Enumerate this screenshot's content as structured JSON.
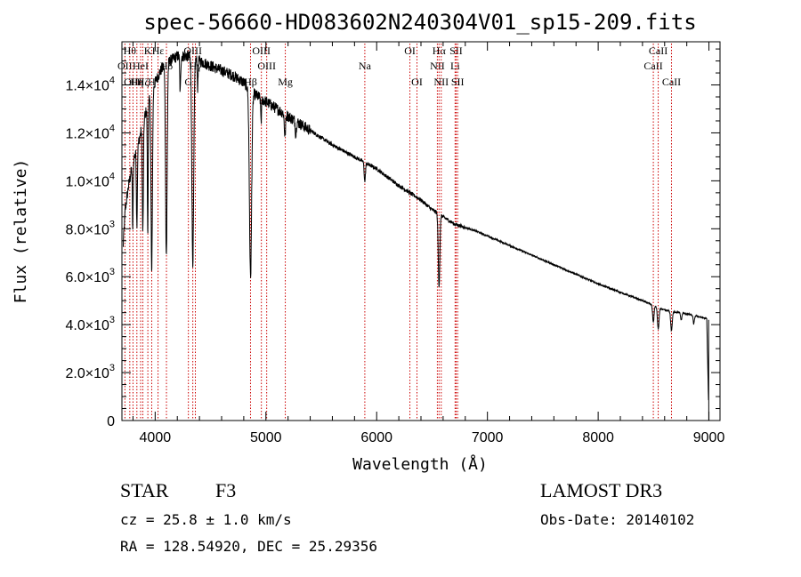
{
  "chart_data": {
    "type": "line",
    "title": "spec-56660-HD083602N240304V01_sp15-209.fits",
    "xlabel": "Wavelength (Å)",
    "ylabel": "Flux (relative)",
    "xlim": [
      3700,
      9100
    ],
    "ylim": [
      0,
      15800
    ],
    "grid": false,
    "x_ticks": [
      {
        "value": 4000,
        "label": "4000"
      },
      {
        "value": 5000,
        "label": "5000"
      },
      {
        "value": 6000,
        "label": "6000"
      },
      {
        "value": 7000,
        "label": "7000"
      },
      {
        "value": 8000,
        "label": "8000"
      },
      {
        "value": 9000,
        "label": "9000"
      }
    ],
    "y_ticks": [
      {
        "value": 0,
        "mant": "0",
        "exp": ""
      },
      {
        "value": 2000,
        "mant": "2.0×10",
        "exp": "3"
      },
      {
        "value": 4000,
        "mant": "4.0×10",
        "exp": "3"
      },
      {
        "value": 6000,
        "mant": "6.0×10",
        "exp": "3"
      },
      {
        "value": 8000,
        "mant": "8.0×10",
        "exp": "3"
      },
      {
        "value": 10000,
        "mant": "1.0×10",
        "exp": "4"
      },
      {
        "value": 12000,
        "mant": "1.2×10",
        "exp": "4"
      },
      {
        "value": 14000,
        "mant": "1.4×10",
        "exp": "4"
      }
    ],
    "continuum": [
      [
        3710,
        7200
      ],
      [
        3730,
        8800
      ],
      [
        3760,
        9800
      ],
      [
        3800,
        10800
      ],
      [
        3850,
        11600
      ],
      [
        3900,
        12600
      ],
      [
        3950,
        13400
      ],
      [
        4000,
        14100
      ],
      [
        4050,
        14600
      ],
      [
        4100,
        14900
      ],
      [
        4200,
        15200
      ],
      [
        4300,
        15200
      ],
      [
        4400,
        15000
      ],
      [
        4500,
        14800
      ],
      [
        4600,
        14600
      ],
      [
        4700,
        14400
      ],
      [
        4800,
        14100
      ],
      [
        4900,
        13600
      ],
      [
        5000,
        13300
      ],
      [
        5100,
        13000
      ],
      [
        5200,
        12700
      ],
      [
        5400,
        12100
      ],
      [
        5600,
        11500
      ],
      [
        5800,
        11000
      ],
      [
        6000,
        10500
      ],
      [
        6200,
        9800
      ],
      [
        6400,
        9200
      ],
      [
        6500,
        8800
      ],
      [
        6700,
        8200
      ],
      [
        6900,
        7900
      ],
      [
        7000,
        7700
      ],
      [
        7200,
        7300
      ],
      [
        7400,
        6900
      ],
      [
        7600,
        6500
      ],
      [
        7800,
        6100
      ],
      [
        8000,
        5700
      ],
      [
        8200,
        5350
      ],
      [
        8400,
        5000
      ],
      [
        8500,
        4800
      ],
      [
        8600,
        4600
      ],
      [
        8800,
        4450
      ],
      [
        8980,
        4250
      ],
      [
        9000,
        0
      ]
    ],
    "absorption_lines": [
      {
        "center": 3798,
        "depth": 2800,
        "width": 5
      },
      {
        "center": 3835,
        "depth": 3200,
        "width": 6
      },
      {
        "center": 3889,
        "depth": 4500,
        "width": 7
      },
      {
        "center": 3933,
        "depth": 5500,
        "width": 5
      },
      {
        "center": 3969,
        "depth": 7500,
        "width": 9
      },
      {
        "center": 4101,
        "depth": 8000,
        "width": 10
      },
      {
        "center": 4226,
        "depth": 1500,
        "width": 6
      },
      {
        "center": 4340,
        "depth": 8500,
        "width": 12
      },
      {
        "center": 4384,
        "depth": 1200,
        "width": 5
      },
      {
        "center": 4861,
        "depth": 7800,
        "width": 14
      },
      {
        "center": 4957,
        "depth": 900,
        "width": 6
      },
      {
        "center": 5172,
        "depth": 900,
        "width": 8
      },
      {
        "center": 5270,
        "depth": 600,
        "width": 6
      },
      {
        "center": 5893,
        "depth": 800,
        "width": 8
      },
      {
        "center": 6563,
        "depth": 3000,
        "width": 10
      },
      {
        "center": 8498,
        "depth": 700,
        "width": 9
      },
      {
        "center": 8542,
        "depth": 900,
        "width": 10
      },
      {
        "center": 8662,
        "depth": 800,
        "width": 10
      },
      {
        "center": 8750,
        "depth": 300,
        "width": 8
      },
      {
        "center": 8863,
        "depth": 350,
        "width": 8
      }
    ],
    "line_markers": [
      {
        "wl": 3727,
        "label": "OII",
        "row": 2
      },
      {
        "wl": 3771,
        "label": "Hθ",
        "row": 1
      },
      {
        "wl": 3800,
        "label": "OIII",
        "row": 3
      },
      {
        "wl": 3835,
        "label": "Hη",
        "row": 3
      },
      {
        "wl": 3869,
        "label": "HeI",
        "row": 2
      },
      {
        "wl": 3889,
        "label": "Hζ",
        "row": 3
      },
      {
        "wl": 3934,
        "label": "K",
        "row": 1
      },
      {
        "wl": 3969,
        "label": "H",
        "row": 3
      },
      {
        "wl": 4026,
        "label": "Hε",
        "row": 1
      },
      {
        "wl": 4102,
        "label": "Hδ",
        "row": 2
      },
      {
        "wl": 4300,
        "label": "G",
        "row": 3
      },
      {
        "wl": 4340,
        "label": "OIII",
        "row": 1
      },
      {
        "wl": 4363,
        "label": "Hγ",
        "row": 2
      },
      {
        "wl": 4861,
        "label": "Hβ",
        "row": 3
      },
      {
        "wl": 4959,
        "label": "OIII",
        "row": 1
      },
      {
        "wl": 5007,
        "label": "OIII",
        "row": 2
      },
      {
        "wl": 5175,
        "label": "Mg",
        "row": 3
      },
      {
        "wl": 5893,
        "label": "Na",
        "row": 2
      },
      {
        "wl": 6300,
        "label": "OI",
        "row": 1
      },
      {
        "wl": 6364,
        "label": "OI",
        "row": 3
      },
      {
        "wl": 6548,
        "label": "NII",
        "row": 2
      },
      {
        "wl": 6563,
        "label": "Hα",
        "row": 1
      },
      {
        "wl": 6583,
        "label": "NII",
        "row": 3
      },
      {
        "wl": 6708,
        "label": "Li",
        "row": 2
      },
      {
        "wl": 6717,
        "label": "SII",
        "row": 1
      },
      {
        "wl": 6731,
        "label": "SII",
        "row": 3
      },
      {
        "wl": 8498,
        "label": "CaII",
        "row": 2
      },
      {
        "wl": 8542,
        "label": "CaII",
        "row": 1
      },
      {
        "wl": 8662,
        "label": "CaII",
        "row": 3
      }
    ]
  },
  "info": {
    "class": "STAR",
    "subclass": "F3",
    "survey": "LAMOST DR3",
    "cz": "cz = 25.8 ± 1.0 km/s",
    "obs_date": "Obs-Date: 20140102",
    "coords": "RA = 128.54920, DEC =  25.29356"
  },
  "colors": {
    "spectrum": "#000000",
    "marker": "#cc0000",
    "axes": "#000000"
  }
}
